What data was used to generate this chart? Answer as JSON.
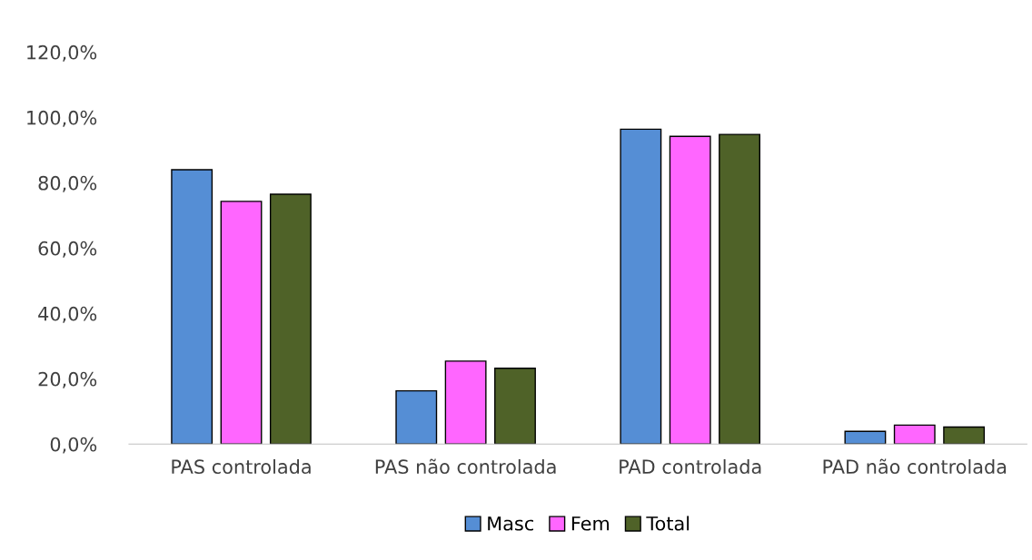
{
  "chart_data": {
    "type": "bar",
    "categories": [
      "PAS controlada",
      "PAS não controlada",
      "PAD controlada",
      "PAD não controlada"
    ],
    "series": [
      {
        "name": "Masc",
        "color": "#558ed5",
        "values": [
          84.0,
          16.3,
          96.4,
          3.9
        ]
      },
      {
        "name": "Fem",
        "color": "#ff66ff",
        "values": [
          74.3,
          25.4,
          94.2,
          5.8
        ]
      },
      {
        "name": "Total",
        "color": "#4f6228",
        "values": [
          76.5,
          23.2,
          94.8,
          5.2
        ]
      }
    ],
    "ylim": [
      0,
      120
    ],
    "yticks": [
      {
        "value": 0,
        "label": "0,0%"
      },
      {
        "value": 20,
        "label": "20,0%"
      },
      {
        "value": 40,
        "label": "40,0%"
      },
      {
        "value": 60,
        "label": "60,0%"
      },
      {
        "value": 80,
        "label": "80,0%"
      },
      {
        "value": 100,
        "label": "100,0%"
      },
      {
        "value": 120,
        "label": "120,0%"
      }
    ],
    "grid": false,
    "legend": "bottom"
  }
}
